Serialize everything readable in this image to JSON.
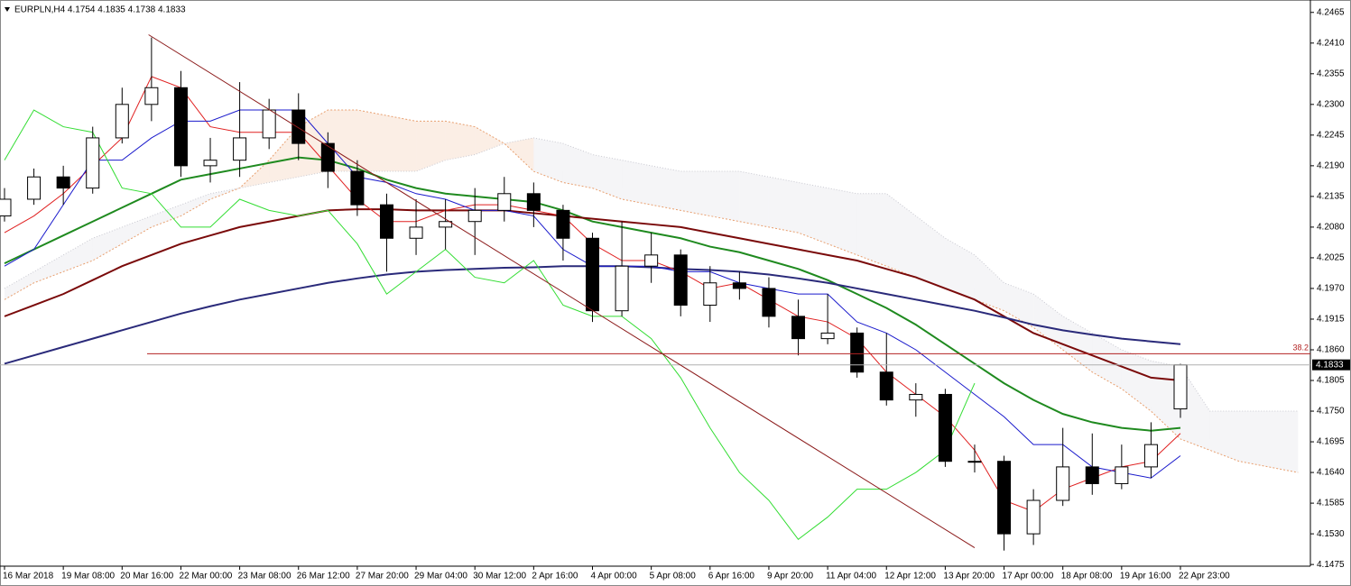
{
  "chart_data": {
    "type": "candlestick",
    "title": "EURPLN,H4  4.1754 4.1835 4.1738 4.1833",
    "categories": [
      "16 Mar 2018",
      null,
      "19 Mar 08:00",
      null,
      "20 Mar 16:00",
      null,
      "22 Mar 00:00",
      null,
      "23 Mar 08:00",
      null,
      "26 Mar 12:00",
      null,
      "27 Mar 20:00",
      null,
      "29 Mar 04:00",
      null,
      "30 Mar 12:00",
      null,
      "2 Apr 16:00",
      null,
      "4 Apr 00:00",
      null,
      "5 Apr 08:00",
      null,
      "6 Apr 16:00",
      null,
      "9 Apr 20:00",
      null,
      "11 Apr 04:00",
      null,
      "12 Apr 12:00",
      null,
      "13 Apr 20:00",
      null,
      "17 Apr 00:00",
      null,
      "18 Apr 08:00",
      null,
      "19 Apr 16:00",
      null,
      "22 Apr 23:00",
      null,
      null,
      null,
      null
    ],
    "open": [
      4.21,
      4.213,
      4.217,
      4.215,
      4.224,
      4.23,
      4.233,
      4.219,
      4.22,
      4.224,
      4.229,
      4.223,
      4.218,
      4.212,
      4.206,
      4.208,
      4.209,
      4.211,
      4.214,
      4.211,
      4.206,
      4.193,
      4.201,
      4.203,
      4.194,
      4.198,
      4.197,
      4.192,
      4.188,
      4.189,
      4.182,
      4.177,
      4.178,
      4.166,
      4.166,
      4.153,
      4.159,
      4.165,
      4.162,
      4.165,
      4.1754,
      null,
      null,
      null,
      null
    ],
    "high": [
      4.215,
      4.2185,
      4.219,
      4.226,
      4.233,
      4.242,
      4.236,
      4.224,
      4.234,
      4.231,
      4.232,
      4.225,
      4.22,
      4.214,
      4.213,
      4.213,
      4.215,
      4.217,
      4.216,
      4.212,
      4.207,
      4.209,
      4.207,
      4.204,
      4.201,
      4.2,
      4.199,
      4.195,
      4.196,
      4.19,
      4.189,
      4.18,
      4.179,
      4.169,
      4.167,
      4.161,
      4.172,
      4.171,
      4.169,
      4.173,
      4.1835,
      null,
      null,
      null,
      null
    ],
    "low": [
      4.209,
      4.212,
      4.212,
      4.214,
      4.223,
      4.227,
      4.217,
      4.216,
      4.217,
      4.222,
      4.22,
      4.215,
      4.21,
      4.2,
      4.203,
      4.204,
      4.203,
      4.209,
      4.208,
      4.202,
      4.191,
      4.192,
      4.198,
      4.192,
      4.191,
      4.195,
      4.19,
      4.185,
      4.187,
      4.181,
      4.176,
      4.174,
      4.165,
      4.164,
      4.15,
      4.151,
      4.158,
      4.16,
      4.161,
      4.163,
      4.1738,
      null,
      null,
      null,
      null
    ],
    "close": [
      4.213,
      4.217,
      4.215,
      4.224,
      4.23,
      4.233,
      4.219,
      4.22,
      4.224,
      4.229,
      4.223,
      4.218,
      4.212,
      4.206,
      4.208,
      4.209,
      4.211,
      4.214,
      4.211,
      4.206,
      4.193,
      4.201,
      4.203,
      4.194,
      4.198,
      4.197,
      4.192,
      4.188,
      4.189,
      4.182,
      4.177,
      4.178,
      4.166,
      4.166,
      4.153,
      4.159,
      4.165,
      4.162,
      4.165,
      4.169,
      4.1833,
      null,
      null,
      null,
      null
    ],
    "lines": [
      {
        "color": "#1f8a1f",
        "values": [
          4.2015,
          4.204,
          4.2065,
          4.209,
          4.2115,
          4.214,
          4.2165,
          4.2175,
          4.2185,
          4.2195,
          4.2205,
          4.22,
          4.2185,
          4.2165,
          4.215,
          4.214,
          4.2135,
          4.213,
          4.2125,
          4.211,
          4.209,
          4.208,
          4.207,
          4.206,
          4.2045,
          4.2035,
          4.202,
          4.2005,
          4.1985,
          4.196,
          4.1935,
          4.1905,
          4.187,
          4.1835,
          4.18,
          4.177,
          4.1745,
          4.173,
          4.172,
          4.1715,
          4.172,
          null,
          null,
          null,
          null
        ]
      },
      {
        "color": "#7a0a0a",
        "values": [
          4.192,
          4.194,
          4.196,
          4.1985,
          4.201,
          4.203,
          4.205,
          4.2065,
          4.208,
          4.209,
          4.21,
          4.211,
          4.2112,
          4.2112,
          4.211,
          4.211,
          4.211,
          4.211,
          4.2105,
          4.21,
          4.2095,
          4.209,
          4.2085,
          4.208,
          4.207,
          4.206,
          4.205,
          4.204,
          4.203,
          4.202,
          4.2005,
          4.199,
          4.197,
          4.195,
          4.192,
          4.189,
          4.187,
          4.185,
          4.183,
          4.181,
          4.1805,
          null,
          null,
          null,
          null
        ]
      },
      {
        "color": "#2a2a7a",
        "values": [
          4.1835,
          4.185,
          4.1865,
          4.188,
          4.1895,
          4.191,
          4.1925,
          4.1938,
          4.195,
          4.196,
          4.197,
          4.198,
          4.1988,
          4.1995,
          4.2,
          4.2003,
          4.2005,
          4.2007,
          4.2008,
          4.201,
          4.201,
          4.201,
          4.2008,
          4.2005,
          4.2003,
          4.2,
          4.1995,
          4.1988,
          4.198,
          4.197,
          4.196,
          4.195,
          4.194,
          4.193,
          4.1918,
          4.1905,
          4.1895,
          4.1887,
          4.188,
          4.1875,
          4.187,
          null,
          null,
          null,
          null
        ]
      },
      {
        "color": "#e02020",
        "values": [
          4.207,
          4.21,
          4.214,
          4.219,
          4.224,
          4.235,
          4.233,
          4.226,
          4.225,
          4.225,
          4.225,
          4.219,
          4.213,
          4.209,
          4.209,
          4.211,
          4.212,
          4.212,
          4.211,
          4.21,
          4.205,
          4.202,
          4.202,
          4.2,
          4.197,
          4.198,
          4.195,
          4.192,
          4.191,
          4.188,
          4.182,
          4.178,
          4.174,
          4.168,
          4.159,
          4.157,
          4.161,
          4.163,
          4.165,
          4.166,
          4.171,
          null,
          null,
          null,
          null
        ]
      },
      {
        "color": "#1a1acc",
        "values": [
          4.201,
          4.204,
          4.212,
          4.22,
          4.22,
          4.224,
          4.227,
          4.227,
          4.229,
          4.229,
          4.229,
          4.223,
          4.217,
          4.216,
          4.214,
          4.213,
          4.211,
          4.211,
          4.21,
          4.204,
          4.201,
          4.201,
          4.201,
          4.2,
          4.2,
          4.198,
          4.197,
          4.196,
          4.196,
          4.191,
          4.189,
          4.186,
          4.182,
          4.178,
          4.174,
          4.169,
          4.169,
          4.165,
          4.164,
          4.163,
          4.167,
          null,
          null,
          null,
          null
        ]
      },
      {
        "color": "#33dd33",
        "values": [
          4.22,
          4.229,
          4.226,
          4.225,
          4.215,
          4.214,
          4.208,
          4.208,
          4.213,
          4.211,
          4.21,
          4.211,
          4.205,
          4.196,
          4.2,
          4.204,
          4.199,
          4.198,
          4.202,
          4.194,
          4.192,
          4.192,
          4.188,
          4.181,
          4.172,
          4.164,
          4.159,
          4.152,
          4.156,
          4.161,
          4.161,
          4.164,
          4.168,
          4.18,
          null,
          null,
          null,
          null,
          null,
          null,
          null,
          null,
          null,
          null,
          null
        ]
      }
    ],
    "cloud": {
      "color_a": "#e8a070",
      "color_b": "#c8c8d0",
      "span_a": [
        4.195,
        4.198,
        4.2,
        4.202,
        4.205,
        4.208,
        4.21,
        4.213,
        4.215,
        4.22,
        4.226,
        4.229,
        4.229,
        4.228,
        4.227,
        4.227,
        4.226,
        4.223,
        4.218,
        4.216,
        4.215,
        4.213,
        4.212,
        4.211,
        4.21,
        4.209,
        4.208,
        4.207,
        4.205,
        4.203,
        4.201,
        4.199,
        4.197,
        4.195,
        4.193,
        4.19,
        4.186,
        4.182,
        4.179,
        4.175,
        4.17,
        4.168,
        4.166,
        4.165,
        4.164
      ],
      "span_b": [
        4.197,
        4.2,
        4.203,
        4.206,
        4.208,
        4.21,
        4.212,
        4.214,
        4.215,
        4.216,
        4.217,
        4.218,
        4.218,
        4.218,
        4.218,
        4.22,
        4.221,
        4.223,
        4.224,
        4.223,
        4.221,
        4.22,
        4.219,
        4.218,
        4.218,
        4.218,
        4.217,
        4.216,
        4.215,
        4.214,
        4.214,
        4.21,
        4.206,
        4.203,
        4.198,
        4.196,
        4.192,
        4.189,
        4.186,
        4.184,
        4.183,
        4.175,
        4.175,
        4.175,
        4.175
      ]
    },
    "trendline": {
      "x": [
        4.9,
        33.0
      ],
      "y": [
        4.2425,
        4.1505
      ],
      "color": "#8b1a1a"
    },
    "fib_level": {
      "label": "38.2",
      "value": 4.1853,
      "x": 4.85,
      "color": "#b22222"
    },
    "last_price": 4.1833,
    "ylim": [
      4.1472,
      4.2484
    ],
    "yticks": [
      4.2465,
      {
        "value": 4.241,
        "label": "4.2410"
      },
      4.2355,
      {
        "value": 4.23,
        "label": "4.2300"
      },
      4.2245,
      {
        "value": 4.219,
        "label": "4.2190"
      },
      4.2135,
      {
        "value": 4.208,
        "label": "4.2080"
      },
      4.2025,
      {
        "value": 4.197,
        "label": "4.1970"
      },
      4.1915,
      {
        "value": 4.186,
        "label": "4.1860"
      },
      4.1805,
      {
        "value": 4.175,
        "label": "4.1750"
      },
      4.1695,
      {
        "value": 4.164,
        "label": "4.1640"
      },
      4.1585,
      {
        "value": 4.153,
        "label": "4.1530"
      },
      4.1475
    ]
  }
}
